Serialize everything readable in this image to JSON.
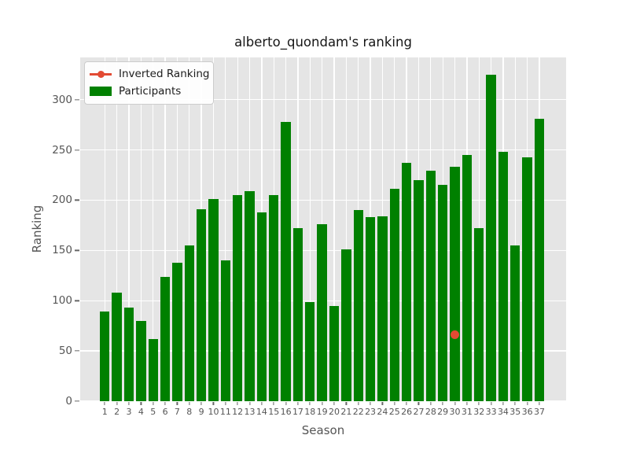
{
  "chart": {
    "title": "alberto_quondam's ranking",
    "xlabel": "Season",
    "ylabel": "Ranking",
    "legend": [
      {
        "label": "Inverted Ranking",
        "swatch": "line-dot",
        "color": "#E24A33"
      },
      {
        "label": "Participants",
        "swatch": "rect",
        "color": "#008000"
      }
    ]
  },
  "chart_data": {
    "type": "bar",
    "title": "alberto_quondam's ranking",
    "xlabel": "Season",
    "ylabel": "Ranking",
    "categories": [
      1,
      2,
      3,
      4,
      5,
      6,
      7,
      8,
      9,
      10,
      11,
      12,
      13,
      14,
      15,
      16,
      17,
      18,
      19,
      20,
      21,
      22,
      23,
      24,
      25,
      26,
      27,
      28,
      29,
      30,
      31,
      32,
      33,
      34,
      35,
      36,
      37
    ],
    "series": [
      {
        "name": "Participants",
        "type": "bar",
        "color": "#008000",
        "values": [
          89,
          108,
          93,
          80,
          62,
          124,
          138,
          155,
          191,
          201,
          140,
          205,
          209,
          188,
          205,
          278,
          172,
          99,
          176,
          95,
          151,
          190,
          183,
          184,
          211,
          237,
          220,
          229,
          215,
          233,
          245,
          172,
          325,
          248,
          155,
          243,
          281
        ]
      },
      {
        "name": "Inverted Ranking",
        "type": "scatter",
        "color": "#E24A33",
        "points": [
          {
            "x": 30,
            "y": 66
          }
        ]
      }
    ],
    "ylim": [
      0,
      342
    ],
    "yticks": [
      0,
      50,
      100,
      150,
      200,
      250,
      300
    ],
    "grid": true,
    "gridline_color": "#FFFFFF",
    "plot_background": "#E5E5E5",
    "legend_position": "upper left"
  }
}
